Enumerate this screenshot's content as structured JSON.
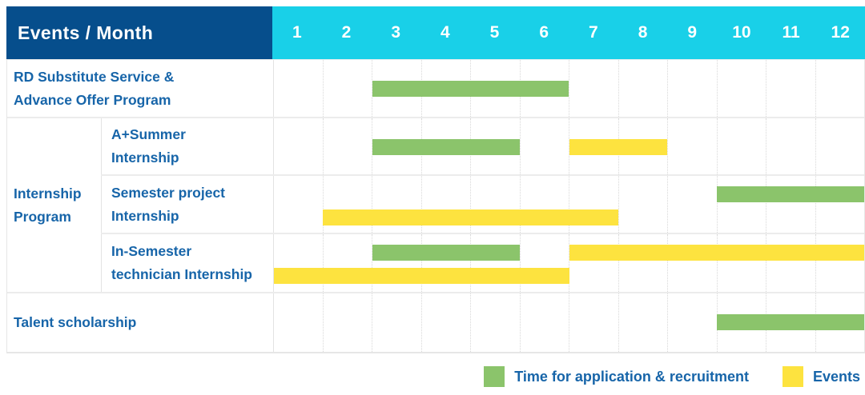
{
  "header": {
    "corner_label": "Events / Month",
    "months": [
      "1",
      "2",
      "3",
      "4",
      "5",
      "6",
      "7",
      "8",
      "9",
      "10",
      "11",
      "12"
    ]
  },
  "colors": {
    "header_bg": "#064e8c",
    "months_bg": "#19d0e8",
    "label_text": "#1765a9",
    "bar_green": "#8bc46b",
    "bar_yellow": "#fde33f",
    "row_grid": "#ececec",
    "column_grid": "#d8d8d8"
  },
  "legend": {
    "items": [
      {
        "label": "Time for application & recruitment",
        "color": "#8bc46b",
        "color_key": "green"
      },
      {
        "label": "Events",
        "color": "#fde33f",
        "color_key": "yellow"
      }
    ]
  },
  "chart_data": {
    "type": "bar",
    "subtype": "gantt-schedule",
    "title": "Events / Month",
    "xlabel": "Month",
    "x_ticks": [
      "1",
      "2",
      "3",
      "4",
      "5",
      "6",
      "7",
      "8",
      "9",
      "10",
      "11",
      "12"
    ],
    "x_range": [
      1,
      12
    ],
    "grid": "dotted-vertical-month-lines",
    "legend_position": "bottom-right",
    "series_legend": [
      {
        "name": "Time for application & recruitment",
        "color": "#8bc46b"
      },
      {
        "name": "Events",
        "color": "#fde33f"
      }
    ],
    "group_label": "Internship\nProgram",
    "tasks": [
      {
        "group": "",
        "label": "RD Substitute Service &\nAdvance Offer Program",
        "bars": [
          {
            "series": "Time for application & recruitment",
            "color_key": "green",
            "start_month": 3,
            "end_month": 6,
            "lane": "center"
          }
        ]
      },
      {
        "group": "Internship Program",
        "label": "A+Summer\nInternship",
        "bars": [
          {
            "series": "Time for application & recruitment",
            "color_key": "green",
            "start_month": 3,
            "end_month": 5,
            "lane": "center"
          },
          {
            "series": "Events",
            "color_key": "yellow",
            "start_month": 7,
            "end_month": 8,
            "lane": "center"
          }
        ]
      },
      {
        "group": "Internship Program",
        "label": "Semester project\nInternship",
        "bars": [
          {
            "series": "Time for application & recruitment",
            "color_key": "green",
            "start_month": 10,
            "end_month": 12,
            "lane": "top"
          },
          {
            "series": "Events",
            "color_key": "yellow",
            "start_month": 2,
            "end_month": 7,
            "lane": "bottom"
          }
        ]
      },
      {
        "group": "Internship Program",
        "label": "In-Semester\ntechnician Internship",
        "bars": [
          {
            "series": "Time for application & recruitment",
            "color_key": "green",
            "start_month": 3,
            "end_month": 5,
            "lane": "top"
          },
          {
            "series": "Events",
            "color_key": "yellow",
            "start_month": 7,
            "end_month": 12,
            "lane": "top"
          },
          {
            "series": "Events",
            "color_key": "yellow",
            "start_month": 1,
            "end_month": 6,
            "lane": "bottom"
          }
        ]
      },
      {
        "group": "",
        "label": "Talent scholarship",
        "bars": [
          {
            "series": "Time for application & recruitment",
            "color_key": "green",
            "start_month": 10,
            "end_month": 12,
            "lane": "center"
          }
        ]
      }
    ]
  }
}
